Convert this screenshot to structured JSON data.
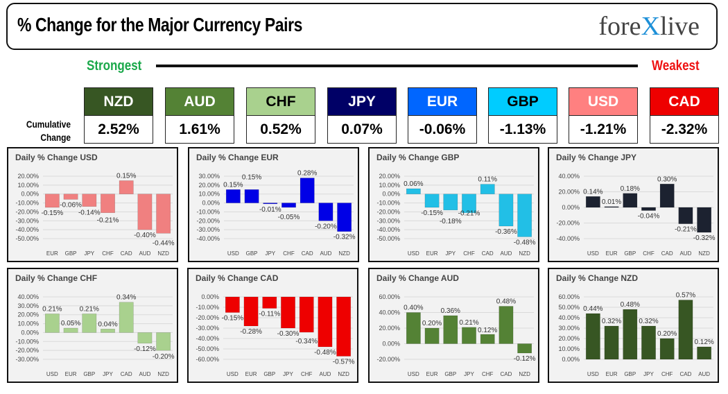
{
  "header": {
    "title": "% Change for the Major Currency Pairs",
    "logo": "forexlive"
  },
  "scale": {
    "strongest": "Strongest",
    "weakest": "Weakest"
  },
  "cumulative_label": [
    "Cumulative",
    "Change"
  ],
  "tiles": [
    {
      "currency": "NZD",
      "value": "2.52%",
      "color": "#375623",
      "text": "#ffffff"
    },
    {
      "currency": "AUD",
      "value": "1.61%",
      "color": "#548235",
      "text": "#ffffff"
    },
    {
      "currency": "CHF",
      "value": "0.52%",
      "color": "#a9d18e",
      "text": "#000000"
    },
    {
      "currency": "JPY",
      "value": "0.07%",
      "color": "#000066",
      "text": "#ffffff"
    },
    {
      "currency": "EUR",
      "value": "-0.06%",
      "color": "#0066ff",
      "text": "#ffffff"
    },
    {
      "currency": "GBP",
      "value": "-1.13%",
      "color": "#00ccff",
      "text": "#000000"
    },
    {
      "currency": "USD",
      "value": "-1.21%",
      "color": "#ff8080",
      "text": "#ffffff"
    },
    {
      "currency": "CAD",
      "value": "-2.32%",
      "color": "#ee0000",
      "text": "#ffffff"
    }
  ],
  "chart_data": [
    {
      "type": "bar",
      "title": "Daily % Change USD",
      "categories": [
        "EUR",
        "GBP",
        "JPY",
        "CHF",
        "CAD",
        "AUD",
        "NZD"
      ],
      "values": [
        -0.15,
        -0.06,
        -0.14,
        -0.21,
        0.15,
        -0.4,
        -0.44
      ],
      "ylim": [
        -0.5,
        0.2
      ],
      "ystep": 0.1,
      "color": "#f08080",
      "grid": true
    },
    {
      "type": "bar",
      "title": "Daily % Change EUR",
      "categories": [
        "USD",
        "GBP",
        "JPY",
        "CHF",
        "CAD",
        "AUD",
        "NZD"
      ],
      "values": [
        0.15,
        0.15,
        -0.01,
        -0.05,
        0.28,
        -0.2,
        -0.32
      ],
      "ylim": [
        -0.4,
        0.3
      ],
      "ystep": 0.1,
      "color": "#0000e6",
      "grid": true
    },
    {
      "type": "bar",
      "title": "Daily % Change GBP",
      "categories": [
        "USD",
        "EUR",
        "JPY",
        "CHF",
        "CAD",
        "AUD",
        "NZD"
      ],
      "values": [
        0.06,
        -0.15,
        -0.18,
        -0.21,
        0.11,
        -0.36,
        -0.48
      ],
      "ylim": [
        -0.5,
        0.2
      ],
      "ystep": 0.1,
      "color": "#22bfe6",
      "grid": true
    },
    {
      "type": "bar",
      "title": "Daily % Change JPY",
      "categories": [
        "USD",
        "EUR",
        "GBP",
        "CHF",
        "CAD",
        "AUD",
        "NZD"
      ],
      "values": [
        0.14,
        0.01,
        0.18,
        -0.04,
        0.3,
        -0.21,
        -0.32
      ],
      "ylim": [
        -0.4,
        0.4
      ],
      "ystep": 0.2,
      "color": "#1c2230",
      "grid": true
    },
    {
      "type": "bar",
      "title": "Daily % Change CHF",
      "categories": [
        "USD",
        "EUR",
        "GBP",
        "JPY",
        "CAD",
        "AUD",
        "NZD"
      ],
      "values": [
        0.21,
        0.05,
        0.21,
        0.04,
        0.34,
        -0.12,
        -0.2
      ],
      "ylim": [
        -0.3,
        0.4
      ],
      "ystep": 0.1,
      "color": "#a9d18e",
      "grid": true
    },
    {
      "type": "bar",
      "title": "Daily % Change CAD",
      "categories": [
        "USD",
        "EUR",
        "GBP",
        "JPY",
        "CHF",
        "AUD",
        "NZD"
      ],
      "values": [
        -0.15,
        -0.28,
        -0.11,
        -0.3,
        -0.34,
        -0.48,
        -0.57
      ],
      "ylim": [
        -0.6,
        0.0
      ],
      "ystep": 0.1,
      "color": "#ee0000",
      "grid": true
    },
    {
      "type": "bar",
      "title": "Daily % Change AUD",
      "categories": [
        "USD",
        "EUR",
        "GBP",
        "JPY",
        "CHF",
        "CAD",
        "NZD"
      ],
      "values": [
        0.4,
        0.2,
        0.36,
        0.21,
        0.12,
        0.48,
        -0.12
      ],
      "ylim": [
        -0.2,
        0.6
      ],
      "ystep": 0.2,
      "color": "#548235",
      "grid": true
    },
    {
      "type": "bar",
      "title": "Daily % Change NZD",
      "categories": [
        "USD",
        "EUR",
        "GBP",
        "JPY",
        "CHF",
        "CAD",
        "AUD"
      ],
      "values": [
        0.44,
        0.32,
        0.48,
        0.32,
        0.2,
        0.57,
        0.12
      ],
      "ylim": [
        0.0,
        0.6
      ],
      "ystep": 0.1,
      "color": "#375623",
      "grid": true
    }
  ]
}
